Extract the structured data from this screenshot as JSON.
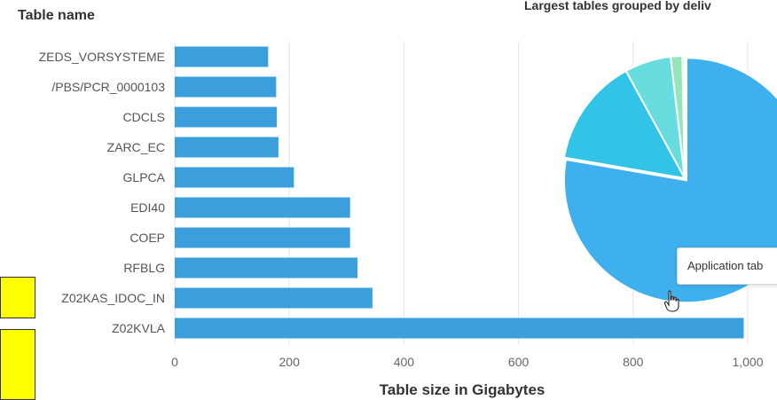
{
  "chart_data": [
    {
      "type": "bar",
      "orientation": "horizontal",
      "categories": [
        "ZEDS_VORSYSTEME",
        "/PBS/PCR_0000103",
        "CDCLS",
        "ZARC_EC",
        "GLPCA",
        "EDI40",
        "COEP",
        "RFBLG",
        "Z02KAS_IDOC_IN",
        "Z02KVLA"
      ],
      "values": [
        163,
        177,
        178,
        181,
        208,
        306,
        306,
        319,
        345,
        993
      ],
      "xlabel": "Table size in Gigabytes",
      "ylabel": "Table name",
      "xlim": [
        0,
        1000
      ],
      "xticks": [
        0,
        200,
        400,
        600,
        800,
        1000
      ],
      "xtick_labels": [
        "0",
        "200",
        "400",
        "600",
        "800",
        "1,000"
      ],
      "grid": true,
      "color": "#3a9fdb"
    },
    {
      "type": "pie",
      "title": "Largest tables grouped by deliv",
      "slices": [
        {
          "value": 76,
          "color": "#3fb0ee"
        },
        {
          "value": 14,
          "color": "#31c4e6"
        },
        {
          "value": 6,
          "color": "#67dde0"
        },
        {
          "value": 1.5,
          "color": "#94e6b8"
        },
        {
          "value": 0.3,
          "color": "#c9ecd2"
        }
      ],
      "tooltip": "Application tab"
    }
  ],
  "markers": {
    "color": "#ffff00"
  }
}
